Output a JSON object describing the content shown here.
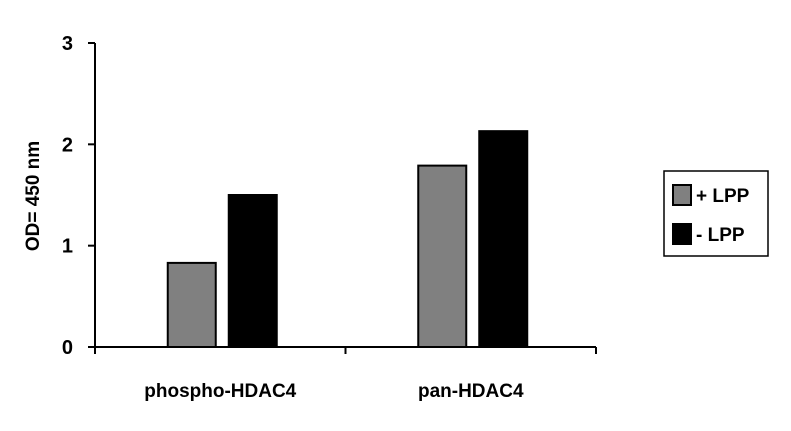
{
  "chart_data": {
    "type": "bar",
    "categories": [
      "phospho-HDAC4",
      "pan-HDAC4"
    ],
    "series": [
      {
        "name": "+ LPP",
        "values": [
          0.83,
          1.79
        ],
        "color": "#808080"
      },
      {
        "name": "- LPP",
        "values": [
          1.5,
          2.13
        ],
        "color": "#000000"
      }
    ],
    "ylabel": "OD= 450 nm",
    "xlabel": "",
    "ylim": [
      0,
      3
    ],
    "yticks": [
      "0",
      "1",
      "2",
      "3"
    ],
    "grid": false,
    "legend_position": "right"
  }
}
